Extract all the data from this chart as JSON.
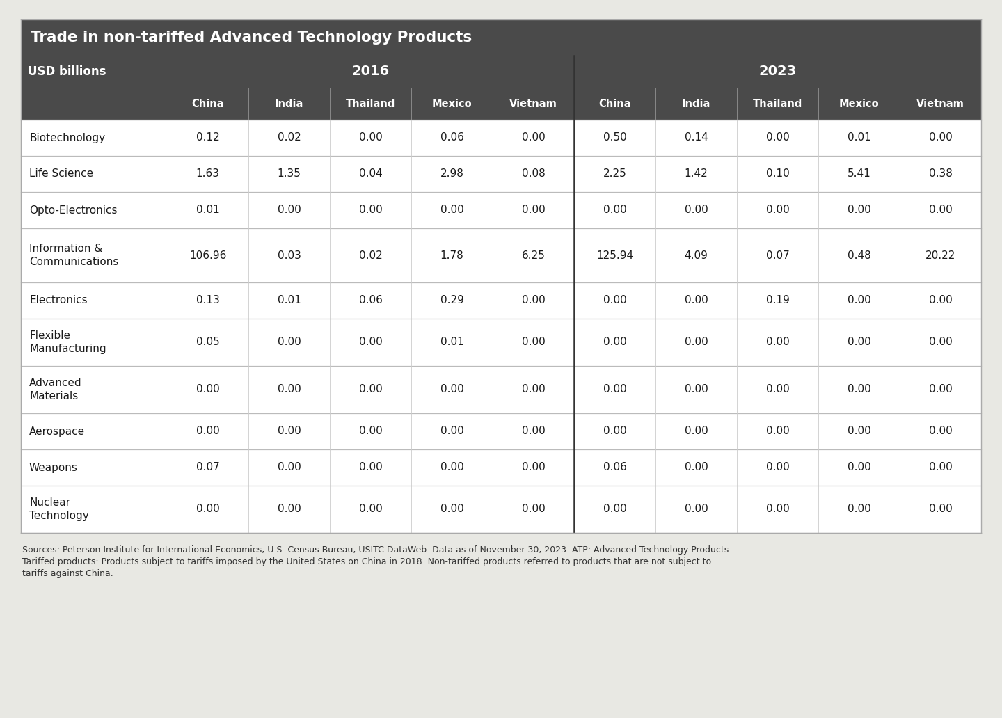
{
  "title": "Trade in non-tariffed Advanced Technology Products",
  "subtitle": "USD billions",
  "year_headers": [
    "2016",
    "2023"
  ],
  "country_headers": [
    "China",
    "India",
    "Thailand",
    "Mexico",
    "Vietnam"
  ],
  "row_labels": [
    "Biotechnology",
    "Life Science",
    "Opto-Electronics",
    "Information &\nCommunications",
    "Electronics",
    "Flexible\nManufacturing",
    "Advanced\nMaterials",
    "Aerospace",
    "Weapons",
    "Nuclear\nTechnology"
  ],
  "data_2016": [
    [
      0.12,
      0.02,
      0.0,
      0.06,
      0.0
    ],
    [
      1.63,
      1.35,
      0.04,
      2.98,
      0.08
    ],
    [
      0.01,
      0.0,
      0.0,
      0.0,
      0.0
    ],
    [
      106.96,
      0.03,
      0.02,
      1.78,
      6.25
    ],
    [
      0.13,
      0.01,
      0.06,
      0.29,
      0.0
    ],
    [
      0.05,
      0.0,
      0.0,
      0.01,
      0.0
    ],
    [
      0.0,
      0.0,
      0.0,
      0.0,
      0.0
    ],
    [
      0.0,
      0.0,
      0.0,
      0.0,
      0.0
    ],
    [
      0.07,
      0.0,
      0.0,
      0.0,
      0.0
    ],
    [
      0.0,
      0.0,
      0.0,
      0.0,
      0.0
    ]
  ],
  "data_2023": [
    [
      0.5,
      0.14,
      0.0,
      0.01,
      0.0
    ],
    [
      2.25,
      1.42,
      0.1,
      5.41,
      0.38
    ],
    [
      0.0,
      0.0,
      0.0,
      0.0,
      0.0
    ],
    [
      125.94,
      4.09,
      0.07,
      0.48,
      20.22
    ],
    [
      0.0,
      0.0,
      0.19,
      0.0,
      0.0
    ],
    [
      0.0,
      0.0,
      0.0,
      0.0,
      0.0
    ],
    [
      0.0,
      0.0,
      0.0,
      0.0,
      0.0
    ],
    [
      0.0,
      0.0,
      0.0,
      0.0,
      0.0
    ],
    [
      0.06,
      0.0,
      0.0,
      0.0,
      0.0
    ],
    [
      0.0,
      0.0,
      0.0,
      0.0,
      0.0
    ]
  ],
  "footer_line1": "Sources: Peterson Institute for International Economics, U.S. Census Bureau, USITC DataWeb. Data as of November 30, 2023. ATP: Advanced Technology Products.",
  "footer_line2": "Tariffed products: Products subject to tariffs imposed by the United States on China in 2018. Non-tariffed products referred to products that are not subject to",
  "footer_line3": "tariffs against China.",
  "header_bg_color": "#4a4a4a",
  "header_text_color": "#ffffff",
  "body_bg_color": "#ffffff",
  "body_text_color": "#1a1a1a",
  "row_line_color": "#bbbbbb",
  "divider_color": "#333333",
  "footer_text_color": "#333333",
  "outer_bg_color": "#e8e8e3"
}
